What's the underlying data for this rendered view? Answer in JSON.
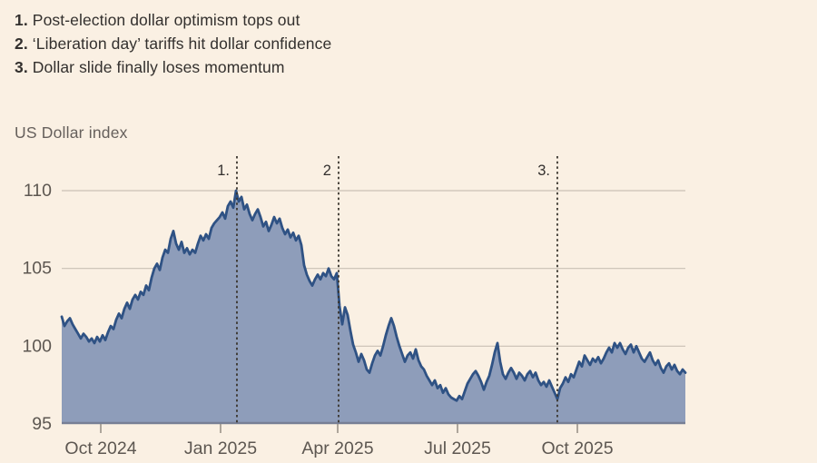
{
  "annotations": [
    {
      "num": "1.",
      "text": "Post-election dollar optimism tops out"
    },
    {
      "num": "2.",
      "text": "‘Liberation day’ tariffs hit dollar confidence"
    },
    {
      "num": "3.",
      "text": "Dollar slide finally loses momentum"
    }
  ],
  "chart_data": {
    "type": "area",
    "title": "US Dollar index",
    "ylabel": "",
    "ylim": [
      95,
      112
    ],
    "yticks": [
      110,
      105,
      100,
      95
    ],
    "grid": true,
    "legend": "none",
    "xticks": [
      {
        "label": "Oct 2024",
        "t": 0.0626
      },
      {
        "label": "Jan 2025",
        "t": 0.2547
      },
      {
        "label": "Apr 2025",
        "t": 0.4425
      },
      {
        "label": "Jul 2025",
        "t": 0.6346
      },
      {
        "label": "Oct 2025",
        "t": 0.8268
      }
    ],
    "markers": [
      {
        "label": "1.",
        "t": 0.2809
      },
      {
        "label": "2",
        "t": 0.4439
      },
      {
        "label": "3.",
        "t": 0.7947
      }
    ],
    "series": [
      {
        "name": "US Dollar index",
        "values": [
          101.9,
          101.3,
          101.6,
          101.8,
          101.4,
          101.1,
          100.8,
          100.5,
          100.8,
          100.6,
          100.3,
          100.5,
          100.2,
          100.6,
          100.3,
          100.7,
          100.4,
          100.9,
          101.3,
          101.1,
          101.7,
          102.1,
          101.8,
          102.4,
          102.8,
          102.4,
          103.0,
          103.3,
          103.0,
          103.5,
          103.3,
          103.9,
          103.6,
          104.4,
          105.0,
          105.3,
          104.9,
          105.7,
          106.2,
          106.0,
          106.9,
          107.4,
          106.6,
          106.2,
          106.7,
          106.0,
          106.3,
          105.9,
          106.2,
          106.0,
          106.6,
          107.1,
          106.8,
          107.2,
          106.9,
          107.6,
          107.9,
          108.1,
          108.3,
          108.6,
          108.2,
          109.0,
          109.3,
          108.9,
          110.0,
          109.3,
          109.6,
          108.8,
          109.1,
          108.5,
          108.1,
          108.5,
          108.8,
          108.3,
          107.7,
          108.0,
          107.4,
          107.8,
          108.3,
          107.9,
          108.2,
          107.6,
          107.2,
          107.5,
          107.0,
          107.3,
          106.8,
          107.1,
          106.5,
          105.2,
          104.6,
          104.2,
          103.9,
          104.3,
          104.6,
          104.3,
          104.7,
          104.5,
          105.0,
          104.5,
          104.3,
          104.7,
          102.6,
          101.4,
          102.5,
          102.0,
          101.0,
          100.1,
          99.6,
          99.0,
          99.5,
          99.1,
          98.5,
          98.3,
          98.9,
          99.4,
          99.7,
          99.4,
          100.0,
          100.7,
          101.3,
          101.8,
          101.3,
          100.6,
          100.0,
          99.5,
          99.0,
          99.4,
          99.6,
          99.2,
          99.8,
          99.1,
          98.7,
          98.5,
          98.1,
          97.8,
          97.5,
          97.8,
          97.3,
          97.5,
          97.0,
          97.3,
          96.9,
          96.7,
          96.6,
          96.5,
          96.8,
          96.6,
          97.1,
          97.6,
          97.9,
          98.2,
          98.4,
          98.1,
          97.7,
          97.2,
          97.7,
          98.1,
          98.8,
          99.6,
          100.2,
          99.0,
          98.2,
          97.9,
          98.3,
          98.6,
          98.3,
          97.9,
          98.3,
          98.1,
          97.8,
          98.2,
          98.4,
          98.0,
          98.3,
          97.8,
          97.5,
          97.7,
          97.4,
          97.8,
          97.4,
          97.0,
          96.6,
          97.3,
          97.6,
          98.0,
          97.7,
          98.2,
          98.0,
          98.5,
          99.0,
          98.7,
          99.4,
          99.1,
          98.8,
          99.2,
          99.0,
          99.3,
          98.9,
          99.2,
          99.6,
          99.9,
          99.6,
          100.2,
          99.9,
          100.2,
          99.8,
          99.5,
          99.9,
          100.1,
          99.6,
          100.0,
          99.6,
          99.2,
          99.0,
          99.3,
          99.6,
          99.1,
          98.8,
          99.1,
          98.6,
          98.3,
          98.7,
          98.9,
          98.5,
          98.8,
          98.4,
          98.2,
          98.5,
          98.3
        ]
      }
    ],
    "colors": {
      "background": "#FAF0E3",
      "line": "#2F5284",
      "fill": "#8E9DBA",
      "grid": "#C9C0B5",
      "baseline": "#757C92",
      "axis_text": "#5D5751",
      "marker_line": "#3A352E",
      "annotation_text": "#33302E",
      "tick": "#948D83"
    }
  }
}
